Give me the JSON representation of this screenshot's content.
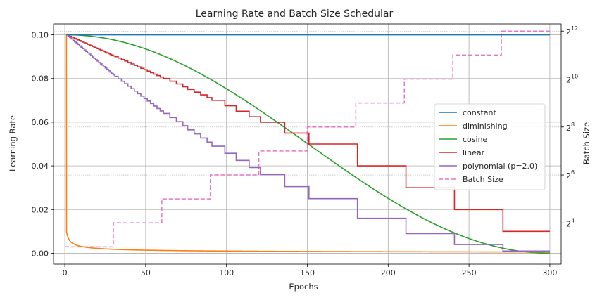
{
  "chart_data": {
    "type": "line",
    "title": "Learning Rate and Batch Size Schedular",
    "xlabel": "Epochs",
    "ylabel": "Learning Rate",
    "y2label": "Batch Size",
    "xlim": [
      -7,
      307
    ],
    "ylim": [
      -0.005,
      0.105
    ],
    "y2lim_log2": [
      2.28,
      12.3
    ],
    "x_ticks": [
      0,
      50,
      100,
      150,
      200,
      250,
      300
    ],
    "x_tick_labels": [
      "0",
      "50",
      "100",
      "150",
      "200",
      "250",
      "300"
    ],
    "y_ticks": [
      0.0,
      0.02,
      0.04,
      0.06,
      0.08,
      0.1
    ],
    "y_tick_labels": [
      "0.00",
      "0.02",
      "0.04",
      "0.06",
      "0.08",
      "0.10"
    ],
    "y2_tick_exponents": [
      4,
      6,
      8,
      10,
      12
    ],
    "y2_tick_base": "2",
    "y2_tick_exponent_labels": [
      "4",
      "6",
      "8",
      "10",
      "12"
    ],
    "grid": true,
    "legend_position": "center-right",
    "series": [
      {
        "name": "constant",
        "color": "#1f77b4",
        "axis": "left",
        "style": "solid",
        "kind": "constant",
        "initial_lr": 0.1,
        "epochs": 300
      },
      {
        "name": "diminishing",
        "color": "#ff7f0e",
        "axis": "left",
        "style": "solid",
        "kind": "diminishing",
        "initial_lr": 0.1,
        "epochs": 300
      },
      {
        "name": "cosine",
        "color": "#2ca02c",
        "axis": "left",
        "style": "solid",
        "kind": "cosine",
        "initial_lr": 0.1,
        "epochs": 300
      },
      {
        "name": "linear",
        "color": "#d62728",
        "axis": "left",
        "style": "solid",
        "kind": "linear",
        "initial_lr": 0.1,
        "epochs": 300,
        "phase_length": 30,
        "batch_doubling": true
      },
      {
        "name": "polynomial (p=2.0)",
        "color": "#9467bd",
        "axis": "left",
        "style": "solid",
        "kind": "polynomial",
        "power": 2.0,
        "initial_lr": 0.1,
        "epochs": 300,
        "phase_length": 30,
        "batch_doubling": true
      },
      {
        "name": "Batch Size",
        "color": "#e377c2",
        "axis": "right",
        "style": "dashed",
        "kind": "steps",
        "steps": [
          {
            "x_start": 0,
            "x_end": 30,
            "log2_batch": 3
          },
          {
            "x_start": 30,
            "x_end": 60,
            "log2_batch": 4
          },
          {
            "x_start": 60,
            "x_end": 90,
            "log2_batch": 5
          },
          {
            "x_start": 90,
            "x_end": 120,
            "log2_batch": 6
          },
          {
            "x_start": 120,
            "x_end": 150,
            "log2_batch": 7
          },
          {
            "x_start": 150,
            "x_end": 180,
            "log2_batch": 8
          },
          {
            "x_start": 180,
            "x_end": 210,
            "log2_batch": 9
          },
          {
            "x_start": 210,
            "x_end": 240,
            "log2_batch": 10
          },
          {
            "x_start": 240,
            "x_end": 270,
            "log2_batch": 11
          },
          {
            "x_start": 270,
            "x_end": 300,
            "log2_batch": 12
          }
        ]
      }
    ]
  }
}
